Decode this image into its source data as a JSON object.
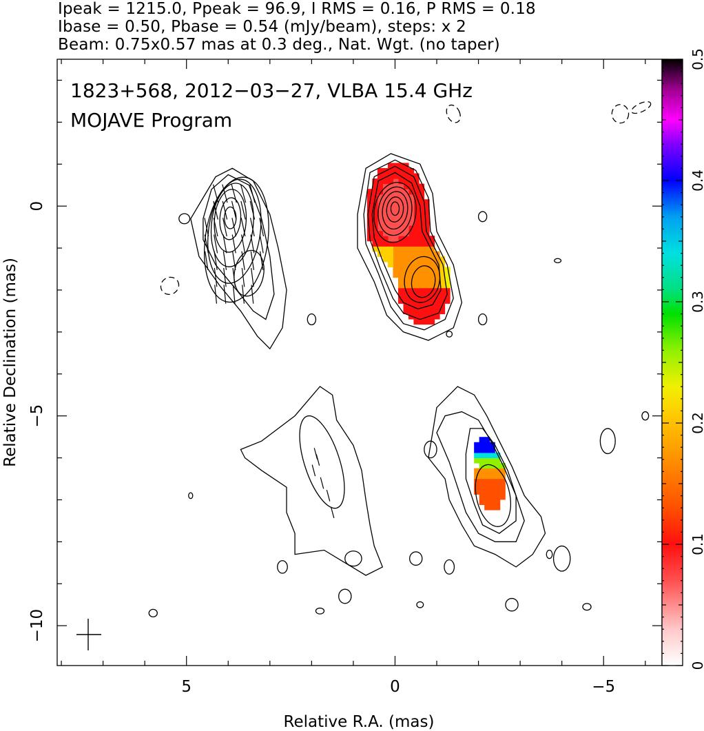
{
  "header": {
    "line1": "Ipeak = 1215.0, Ppeak = 96.9, I RMS = 0.16, P RMS = 0.18",
    "line2": "Ibase = 0.50, Pbase = 0.54 (mJy/beam), steps: x 2",
    "line3": "Beam: 0.75x0.57 mas at 0.3 deg., Nat. Wgt. (no taper)"
  },
  "map": {
    "title_line1": "1823+568, 2012−03−27, VLBA 15.4 GHz",
    "title_line2": "MOJAVE Program"
  },
  "chart_data": {
    "type": "heatmap",
    "xlabel": "Relative R.A. (mas)",
    "ylabel": "Relative Declination (mas)",
    "xlim": [
      8.1,
      -6.4
    ],
    "ylim": [
      -10.95,
      3.5
    ],
    "x_ticks": [
      5,
      0,
      -5
    ],
    "x_tick_labels": [
      "5",
      "0",
      "−5"
    ],
    "y_ticks": [
      0,
      -5,
      -10
    ],
    "y_tick_labels": [
      "0",
      "−5",
      "−10"
    ],
    "colorbar": {
      "range": [
        0,
        0.5
      ],
      "ticks": [
        0,
        0.1,
        0.2,
        0.3,
        0.4,
        0.5
      ],
      "tick_labels": [
        "0",
        "0.1",
        "0.2",
        "0.3",
        "0.4",
        "0.5"
      ]
    },
    "grid": false,
    "beam": {
      "major_mas": 0.75,
      "minor_mas": 0.57,
      "pa_deg": 0.3
    },
    "contour_base_mJy_per_beam": 0.5,
    "contour_step_factor": 2,
    "stokes_I_peak_mJy_per_beam": 1215.0,
    "polarized_peak_mJy_per_beam": 96.9
  }
}
